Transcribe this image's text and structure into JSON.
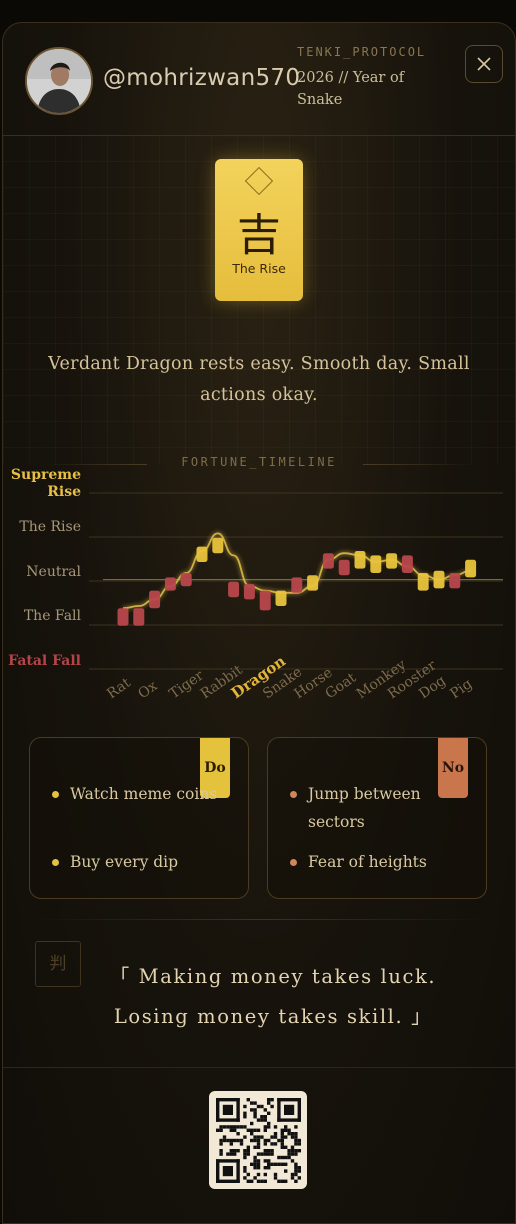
{
  "header": {
    "username": "@mohrizwan570",
    "protocol": "TENKI_PROTOCOL",
    "year_line": "2026 // Year of Snake"
  },
  "omen": {
    "glyph": "吉",
    "label": "The Rise"
  },
  "summary": "Verdant Dragon rests easy. Smooth day. Small actions okay.",
  "timeline": {
    "title": "FORTUNE_TIMELINE"
  },
  "chart_data": {
    "type": "candlestick",
    "y_levels": [
      "Supreme Rise",
      "The Rise",
      "Neutral",
      "The Fall",
      "Fatal Fall"
    ],
    "ylim": [
      -2,
      2
    ],
    "categories": [
      "Rat",
      "Ox",
      "Tiger",
      "Rabbit",
      "Dragon",
      "Snake",
      "Horse",
      "Goat",
      "Monkey",
      "Rooster",
      "Dog",
      "Pig"
    ],
    "highlighted_category": "Dragon",
    "candles": [
      {
        "open": -0.3,
        "close": -0.7,
        "color": "red"
      },
      {
        "open": -0.3,
        "close": -0.7,
        "color": "red"
      },
      {
        "open": 0.1,
        "close": -0.3,
        "color": "red"
      },
      {
        "open": 0.4,
        "close": 0.1,
        "color": "red"
      },
      {
        "open": 0.5,
        "close": 0.2,
        "color": "red"
      },
      {
        "open": 0.75,
        "close": 1.1,
        "color": "gold"
      },
      {
        "open": 0.95,
        "close": 1.3,
        "color": "gold"
      },
      {
        "open": 0.3,
        "close": -0.05,
        "color": "red"
      },
      {
        "open": 0.25,
        "close": -0.1,
        "color": "red"
      },
      {
        "open": 0.1,
        "close": -0.35,
        "color": "red"
      },
      {
        "open": -0.25,
        "close": 0.1,
        "color": "gold"
      },
      {
        "open": 0.4,
        "close": 0.05,
        "color": "red"
      },
      {
        "open": 0.1,
        "close": 0.45,
        "color": "gold"
      },
      {
        "open": 0.95,
        "close": 0.6,
        "color": "red"
      },
      {
        "open": 0.8,
        "close": 0.45,
        "color": "red"
      },
      {
        "open": 0.6,
        "close": 1.0,
        "color": "gold"
      },
      {
        "open": 0.5,
        "close": 0.9,
        "color": "gold"
      },
      {
        "open": 0.6,
        "close": 0.95,
        "color": "gold"
      },
      {
        "open": 0.9,
        "close": 0.5,
        "color": "red"
      },
      {
        "open": 0.1,
        "close": 0.5,
        "color": "gold"
      },
      {
        "open": 0.15,
        "close": 0.55,
        "color": "gold"
      },
      {
        "open": 0.5,
        "close": 0.15,
        "color": "red"
      },
      {
        "open": 0.4,
        "close": 0.8,
        "color": "gold"
      }
    ],
    "trend": [
      -0.3,
      -0.25,
      -0.1,
      0.2,
      0.5,
      1.0,
      1.4,
      0.9,
      0.2,
      0.1,
      0.05,
      0.05,
      0.2,
      0.8,
      0.95,
      0.9,
      0.75,
      0.8,
      0.65,
      0.45,
      0.35,
      0.45,
      0.55
    ],
    "baseline": 0.35,
    "colors": {
      "red": "#b8474c",
      "gold": "#e9c43c",
      "trend": "#e3bf48"
    }
  },
  "do_panel": {
    "tag": "Do",
    "items": [
      "Watch meme coins",
      "Buy every dip"
    ],
    "tag_color": "#e5c23c",
    "dot_color": "#e5c23c"
  },
  "no_panel": {
    "tag": "No",
    "items": [
      "Jump between sectors",
      "Fear of heights"
    ],
    "tag_color": "#c9764d",
    "dot_color": "#d0875a"
  },
  "verdict": {
    "icon_glyph": "判",
    "quote": "「 Making money takes luck. Losing money takes skill. 」"
  }
}
